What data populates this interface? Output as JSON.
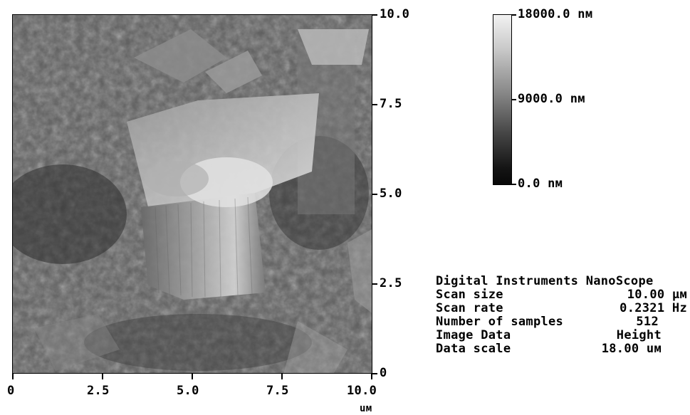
{
  "image": {
    "description_icon": "afm-height-map-image"
  },
  "right_axis": {
    "ticks": [
      "10.0",
      "7.5",
      "5.0",
      "2.5",
      "0"
    ]
  },
  "bottom_axis": {
    "ticks": [
      "0",
      "2.5",
      "5.0",
      "7.5",
      "10.0"
    ],
    "unit": "uм"
  },
  "colorbar": {
    "max_label": "18000.0 nм",
    "mid_label": "9000.0 nм",
    "min_label": "0.0 nм"
  },
  "info": {
    "header": "Digital Instruments NanoScope",
    "rows": [
      {
        "key": "Scan size",
        "value": "10.00 µм"
      },
      {
        "key": "Scan rate",
        "value": "0.2321 Hz"
      },
      {
        "key": "Number of samples",
        "value": "512"
      },
      {
        "key": "Image Data",
        "value": "Height"
      },
      {
        "key": "Data scale",
        "value": "18.00 uм"
      }
    ]
  }
}
